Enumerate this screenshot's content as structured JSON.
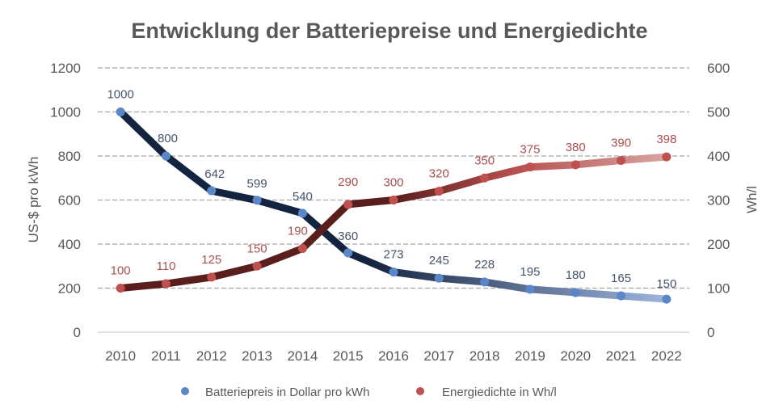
{
  "chart_data": {
    "type": "line",
    "title": "Entwicklung der Batteriepreise und Energiedichte",
    "categories": [
      "2010",
      "2011",
      "2012",
      "2013",
      "2014",
      "2015",
      "2016",
      "2017",
      "2018",
      "2019",
      "2020",
      "2021",
      "2022"
    ],
    "series": [
      {
        "name": "Batteriepreis in Dollar pro kWh",
        "axis": "left",
        "values": [
          1000,
          800,
          642,
          599,
          540,
          360,
          273,
          245,
          228,
          195,
          180,
          165,
          150
        ],
        "line_color_start": "#14233F",
        "line_color_end": "#8EA9D8",
        "marker_color": "#5B86C8",
        "label_color": "#44546A"
      },
      {
        "name": "Energiedichte in Wh/l",
        "axis": "right",
        "values": [
          100,
          110,
          125,
          150,
          190,
          290,
          300,
          320,
          350,
          375,
          380,
          390,
          398
        ],
        "line_color_start": "#5A1E1D",
        "line_color_end": "#D9A09E",
        "marker_color": "#C0504D",
        "label_color": "#A9504E"
      }
    ],
    "xlabel": "",
    "ylabel": "US-$ pro kWh",
    "y2label": "Wh/l",
    "ylim": [
      0,
      1200
    ],
    "y2lim": [
      0,
      600
    ],
    "yticks": [
      "0",
      "200",
      "400",
      "600",
      "800",
      "1000",
      "1200"
    ],
    "y2ticks": [
      "0",
      "100",
      "200",
      "300",
      "400",
      "500",
      "600"
    ],
    "grid": true,
    "legend": "bottom"
  }
}
